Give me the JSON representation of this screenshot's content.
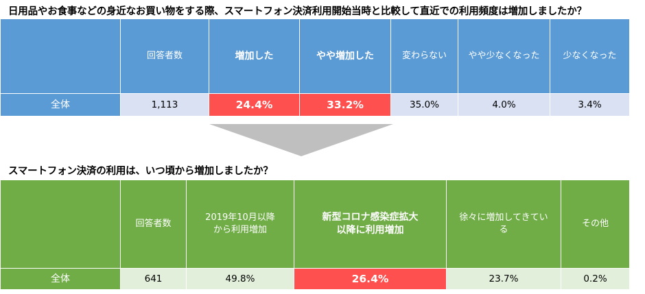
{
  "q1": {
    "title": "日用品やお食事などの身近なお買い物をする際、スマートフォン決済利用開始当時と比較して直近での利用頻度は増加しましたか？",
    "headers": [
      "",
      "回答者数",
      "増加した",
      "やや増加した",
      "変わらない",
      "やや少なくなった",
      "少なくなった"
    ],
    "row": {
      "label": "全体",
      "count": "1,113",
      "values": [
        "24.4%",
        "33.2%",
        "35.0%",
        "4.0%",
        "3.4%"
      ]
    }
  },
  "q2": {
    "title": "スマートフォン決済の利用は、いつ頃から増加しましたか？",
    "headers": [
      "",
      "回答者数",
      "2019年10月以降\nから利用増加",
      "新型コロナ感染症拡大\n以降に利用増加",
      "徐々に増加してきてい\nる",
      "その他"
    ],
    "row": {
      "label": "全体",
      "count": "641",
      "values": [
        "49.8%",
        "26.4%",
        "23.7%",
        "0.2%"
      ]
    }
  },
  "colors": {
    "blue_header": "#5b9bd5",
    "blue_cell": "#d9e1f2",
    "green_header": "#70ad47",
    "green_cell": "#e2efda",
    "highlight": "#ff5050",
    "arrow": "#bfbfbf"
  }
}
